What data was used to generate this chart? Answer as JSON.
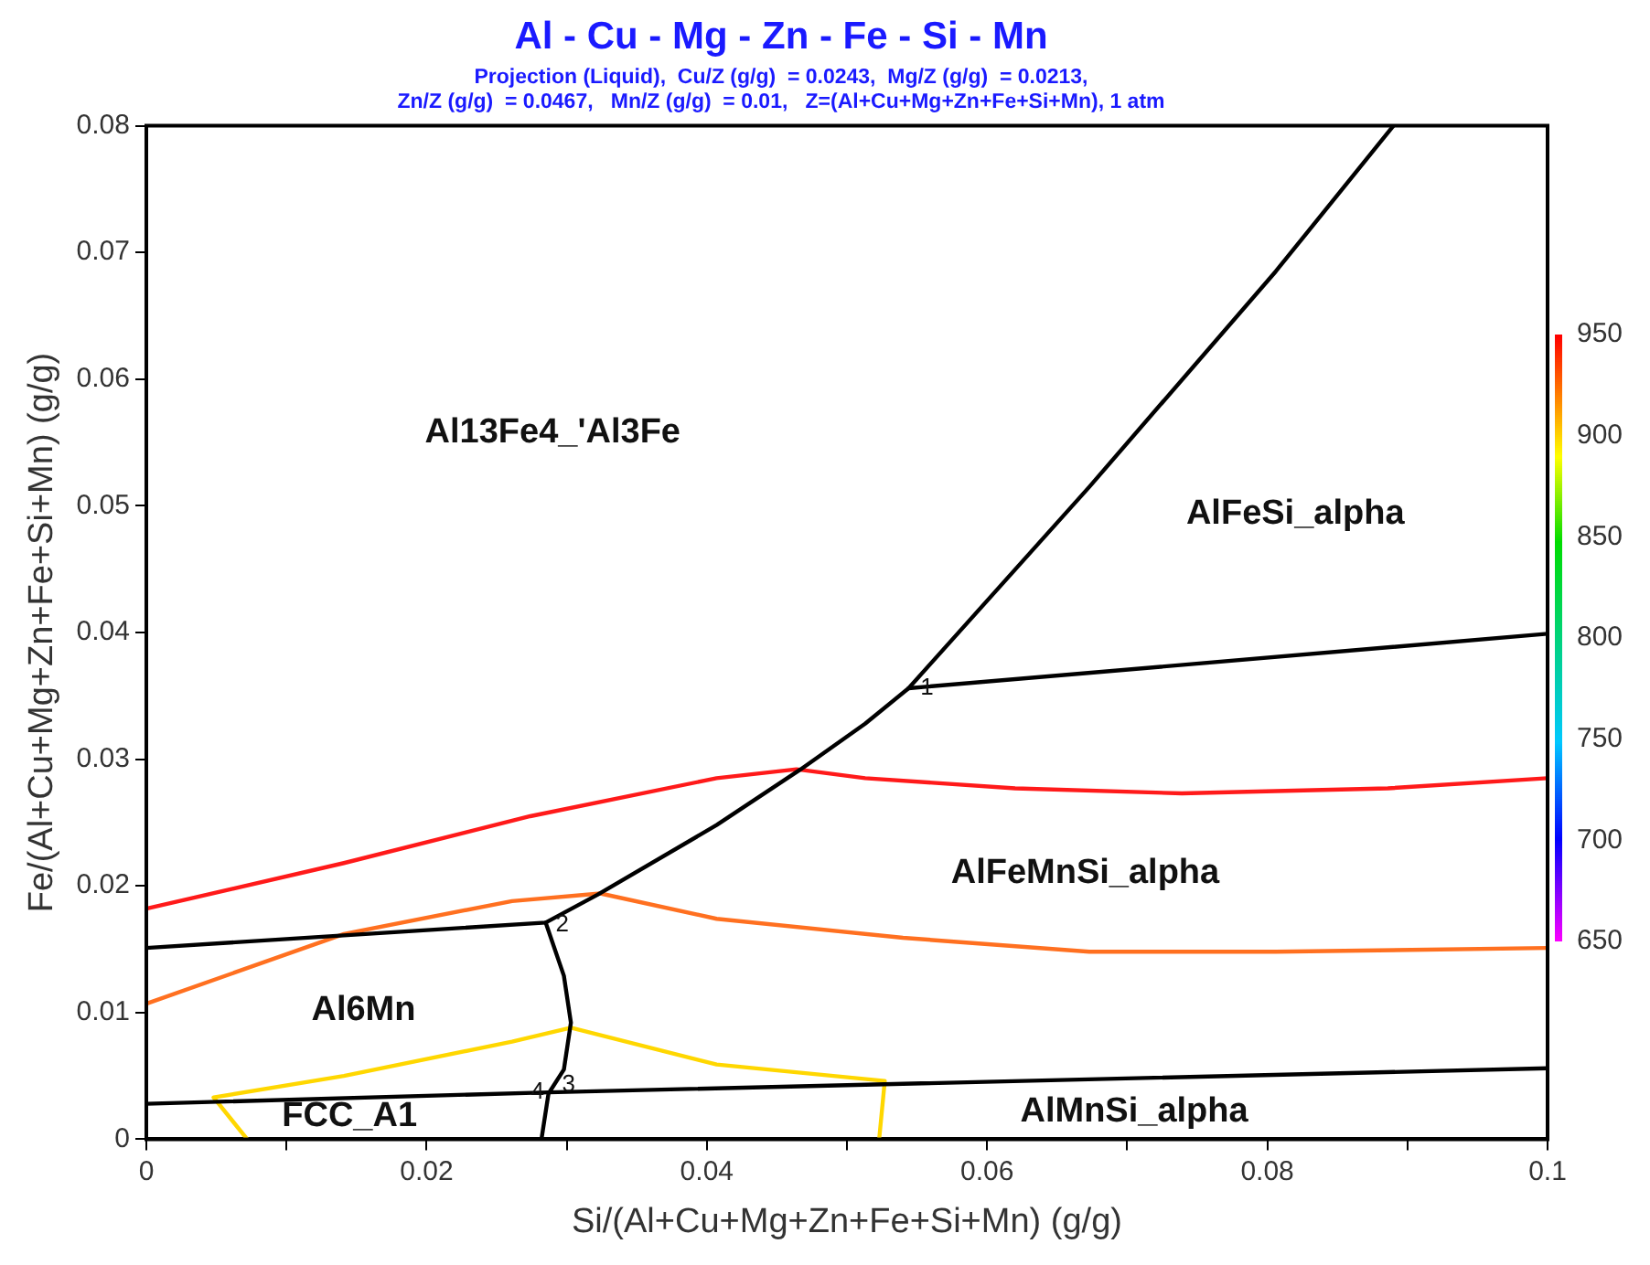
{
  "chart_data": {
    "type": "line",
    "title": "Al - Cu - Mg - Zn - Fe - Si - Mn",
    "subtitle": "Projection (Liquid),  Cu/Z (g/g)  = 0.0243,  Mg/Z (g/g)  = 0.0213,\nZn/Z (g/g)  = 0.0467,   Mn/Z (g/g)  = 0.01,   Z=(Al+Cu+Mg+Zn+Fe+Si+Mn), 1 atm",
    "xlabel": "Si/(Al+Cu+Mg+Zn+Fe+Si+Mn) (g/g)",
    "ylabel": "Fe/(Al+Cu+Mg+Zn+Fe+Si+Mn) (g/g)",
    "xlim": [
      0,
      0.1
    ],
    "ylim": [
      0,
      0.08
    ],
    "xticks": [
      0,
      {
        "value": 0.01,
        "label": null
      },
      0.02,
      {
        "value": 0.03,
        "label": null
      },
      0.04,
      {
        "value": 0.05,
        "label": null
      },
      0.06,
      {
        "value": 0.07,
        "label": null
      },
      0.08,
      {
        "value": 0.09,
        "label": null
      },
      0.1
    ],
    "yticks": [
      0,
      0.01,
      0.02,
      0.03,
      0.04,
      0.05,
      0.06,
      0.07,
      0.08
    ],
    "clim": [
      650,
      950
    ],
    "cticks": [
      650,
      700,
      750,
      800,
      850,
      900,
      950
    ],
    "grid": false,
    "legend": false,
    "marker": "none",
    "line_style": "solid",
    "series": [
      {
        "color": "#000000",
        "x": [
          0,
          0.0285,
          0.0322,
          0.0407,
          0.0467,
          0.0513,
          0.0544,
          0.0673,
          0.0806,
          0.089
        ],
        "values": [
          0.0151,
          0.0171,
          0.0193,
          0.0248,
          0.0292,
          0.0328,
          0.0356,
          0.0515,
          0.0685,
          0.08
        ]
      },
      {
        "color": "#000000",
        "x": [
          0.0544,
          0.1
        ],
        "values": [
          0.0356,
          0.0399
        ]
      },
      {
        "color": "#000000",
        "x": [
          0.0285,
          0.0298,
          0.0303,
          0.0298,
          0.0287,
          0.0282
        ],
        "values": [
          0.0171,
          0.0129,
          0.0092,
          0.0055,
          0.0036,
          0
        ]
      },
      {
        "color": "#000000",
        "x": [
          0,
          0.0287,
          0.1
        ],
        "values": [
          0.0028,
          0.0037,
          0.0056
        ]
      },
      {
        "color": "#ff1a1a",
        "x": [
          0,
          0.0141,
          0.0274,
          0.0407,
          0.0464,
          0.0513,
          0.062,
          0.0739,
          0.0886,
          0.1
        ],
        "values": [
          0.0182,
          0.0218,
          0.0255,
          0.0285,
          0.0292,
          0.0285,
          0.0277,
          0.0273,
          0.0277,
          0.0285
        ]
      },
      {
        "color": "#ff7020",
        "x": [
          0,
          0.0141,
          0.0261,
          0.0324,
          0.0407,
          0.054,
          0.0673,
          0.0806,
          0.1
        ],
        "values": [
          0.0107,
          0.0162,
          0.0188,
          0.0194,
          0.0174,
          0.0159,
          0.0148,
          0.0148,
          0.0151
        ]
      },
      {
        "color": "#ffd700",
        "x": [
          0.0072,
          0.0048,
          0.0141,
          0.0261,
          0.0303,
          0.0407,
          0.0527,
          0.0523
        ],
        "values": [
          0,
          0.0033,
          0.005,
          0.0077,
          0.0088,
          0.0059,
          0.0046,
          0
        ]
      }
    ],
    "annotations": [
      "Al13Fe4_'Al3Fe",
      "AlFeSi_alpha",
      "AlFeMnSi_alpha",
      "Al6Mn",
      "FCC_A1",
      "AlMnSi_alpha",
      {
        "text": "1",
        "x": 0.0544,
        "y": 0.0356
      },
      {
        "text": "2",
        "x": 0.0285,
        "y": 0.0171
      },
      {
        "text": "3",
        "x": 0.0287,
        "y": 0.0037
      },
      {
        "text": "4",
        "x": 0.0287,
        "y": 0.0037
      }
    ]
  }
}
